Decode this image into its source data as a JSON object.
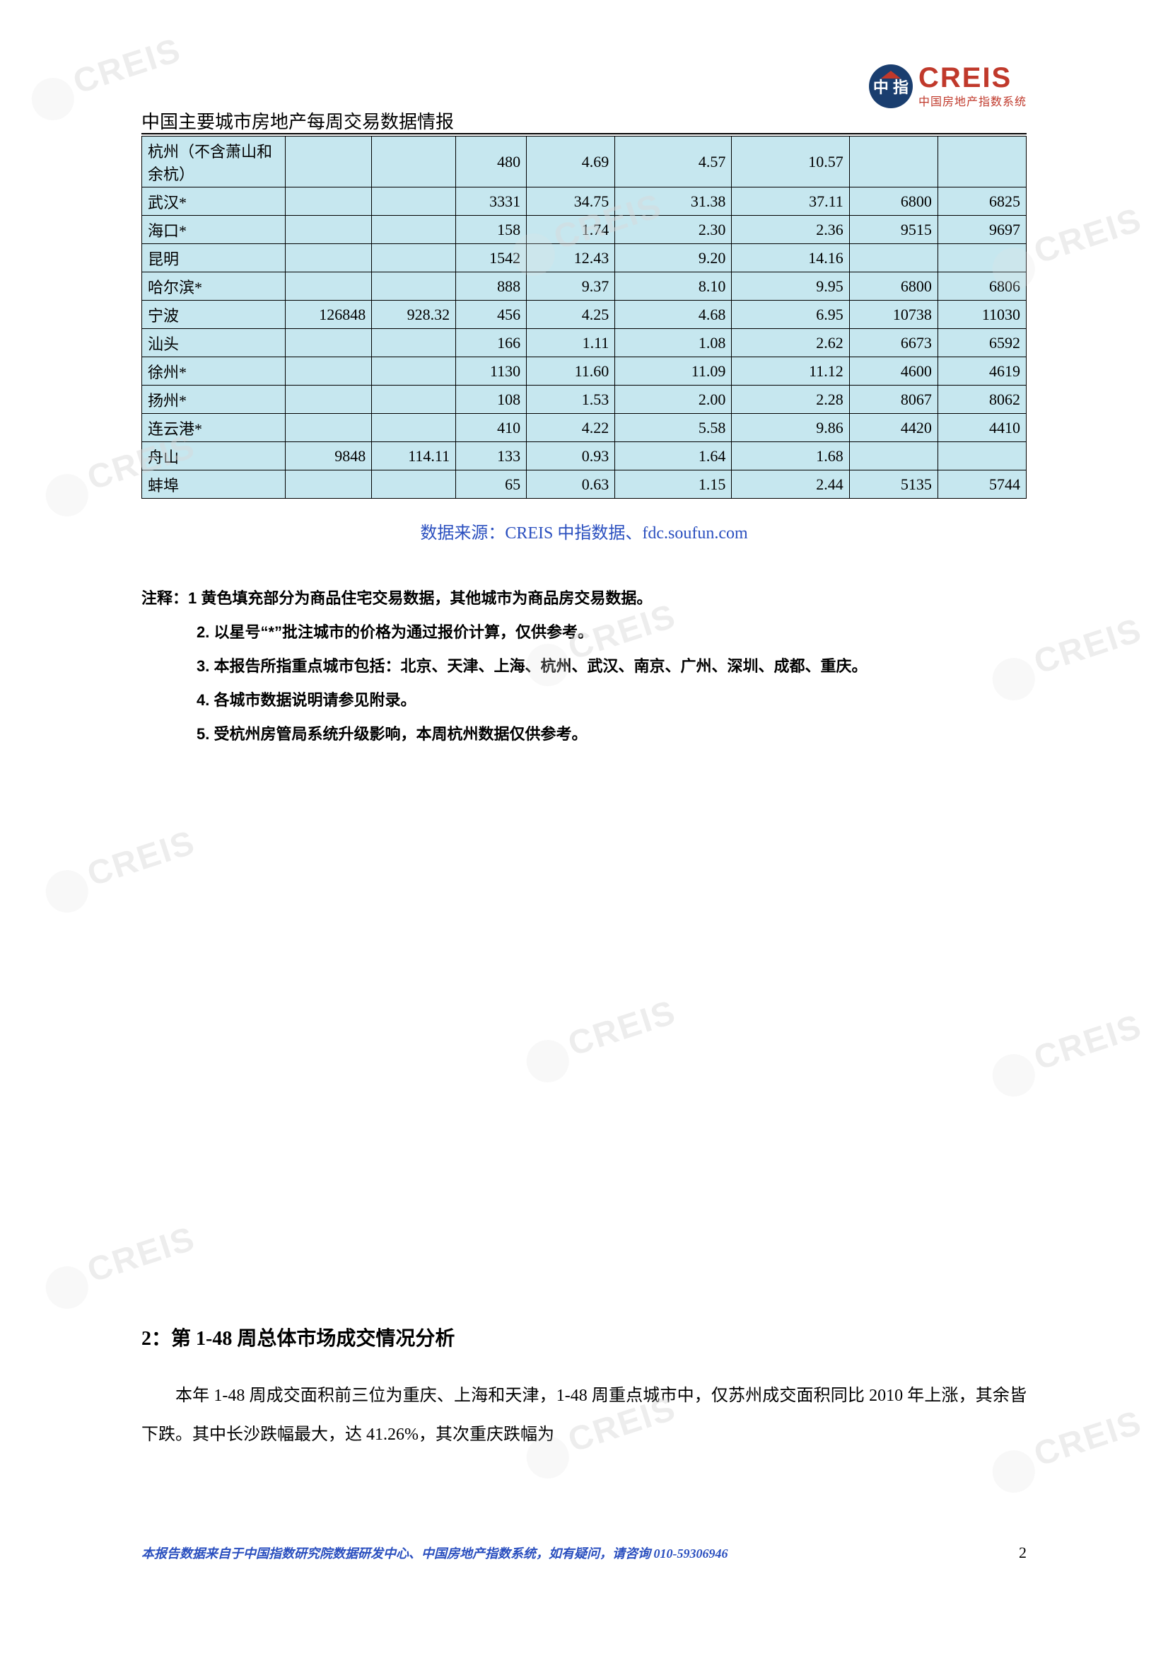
{
  "header": {
    "title": "中国主要城市房地产每周交易数据情报",
    "logo_main": "CREIS",
    "logo_sub": "中国房地产指数系统",
    "logo_badge_text": "中 指"
  },
  "table": {
    "background_color": "#c6e7ef",
    "border_color": "#000000",
    "font_size": 22,
    "col_widths_pct": [
      16.2,
      9.8,
      9.5,
      8.0,
      10.0,
      13.2,
      13.3,
      10.0,
      10.0
    ],
    "rows": [
      {
        "city": "杭州（不含萧山和余杭）",
        "c1": "",
        "c2": "",
        "c3": "480",
        "c4": "4.69",
        "c5": "4.57",
        "c6": "10.57",
        "c7": "",
        "c8": "",
        "tall": true
      },
      {
        "city": "武汉*",
        "c1": "",
        "c2": "",
        "c3": "3331",
        "c4": "34.75",
        "c5": "31.38",
        "c6": "37.11",
        "c7": "6800",
        "c8": "6825"
      },
      {
        "city": "海口*",
        "c1": "",
        "c2": "",
        "c3": "158",
        "c4": "1.74",
        "c5": "2.30",
        "c6": "2.36",
        "c7": "9515",
        "c8": "9697"
      },
      {
        "city": "昆明",
        "c1": "",
        "c2": "",
        "c3": "1542",
        "c4": "12.43",
        "c5": "9.20",
        "c6": "14.16",
        "c7": "",
        "c8": ""
      },
      {
        "city": "哈尔滨*",
        "c1": "",
        "c2": "",
        "c3": "888",
        "c4": "9.37",
        "c5": "8.10",
        "c6": "9.95",
        "c7": "6800",
        "c8": "6806"
      },
      {
        "city": "宁波",
        "c1": "126848",
        "c2": "928.32",
        "c3": "456",
        "c4": "4.25",
        "c5": "4.68",
        "c6": "6.95",
        "c7": "10738",
        "c8": "11030"
      },
      {
        "city": "汕头",
        "c1": "",
        "c2": "",
        "c3": "166",
        "c4": "1.11",
        "c5": "1.08",
        "c6": "2.62",
        "c7": "6673",
        "c8": "6592"
      },
      {
        "city": "徐州*",
        "c1": "",
        "c2": "",
        "c3": "1130",
        "c4": "11.60",
        "c5": "11.09",
        "c6": "11.12",
        "c7": "4600",
        "c8": "4619"
      },
      {
        "city": "扬州*",
        "c1": "",
        "c2": "",
        "c3": "108",
        "c4": "1.53",
        "c5": "2.00",
        "c6": "2.28",
        "c7": "8067",
        "c8": "8062"
      },
      {
        "city": "连云港*",
        "c1": "",
        "c2": "",
        "c3": "410",
        "c4": "4.22",
        "c5": "5.58",
        "c6": "9.86",
        "c7": "4420",
        "c8": "4410"
      },
      {
        "city": "舟山",
        "c1": "9848",
        "c2": "114.11",
        "c3": "133",
        "c4": "0.93",
        "c5": "1.64",
        "c6": "1.68",
        "c7": "",
        "c8": ""
      },
      {
        "city": "蚌埠",
        "c1": "",
        "c2": "",
        "c3": "65",
        "c4": "0.63",
        "c5": "1.15",
        "c6": "2.44",
        "c7": "5135",
        "c8": "5744"
      }
    ]
  },
  "source_line": "数据来源：CREIS 中指数据、fdc.soufun.com",
  "notes": {
    "prefix": "注释：",
    "items": [
      "1 黄色填充部分为商品住宅交易数据，其他城市为商品房交易数据。",
      "2. 以星号“*”批注城市的价格为通过报价计算，仅供参考。",
      "3. 本报告所指重点城市包括：北京、天津、上海、杭州、武汉、南京、广州、深圳、成都、重庆。",
      "4. 各城市数据说明请参见附录。",
      "5. 受杭州房管局系统升级影响，本周杭州数据仅供参考。"
    ]
  },
  "section2": {
    "title": "2：第 1-48 周总体市场成交情况分析",
    "body": "本年 1-48 周成交面积前三位为重庆、上海和天津，1-48 周重点城市中，仅苏州成交面积同比 2010 年上涨，其余皆下跌。其中长沙跌幅最大，达 41.26%，其次重庆跌幅为"
  },
  "footer": {
    "source": "本报告数据来自于中国指数研究院数据研发中心、中国房地产指数系统，如有疑问，请咨询 010-59306946",
    "page": "2"
  },
  "watermark_text": "CREIS",
  "colors": {
    "link_blue": "#2a4fbf",
    "logo_red": "#c0392b",
    "logo_blue": "#1a3e6f",
    "watermark_gray": "#d9d9d9"
  }
}
